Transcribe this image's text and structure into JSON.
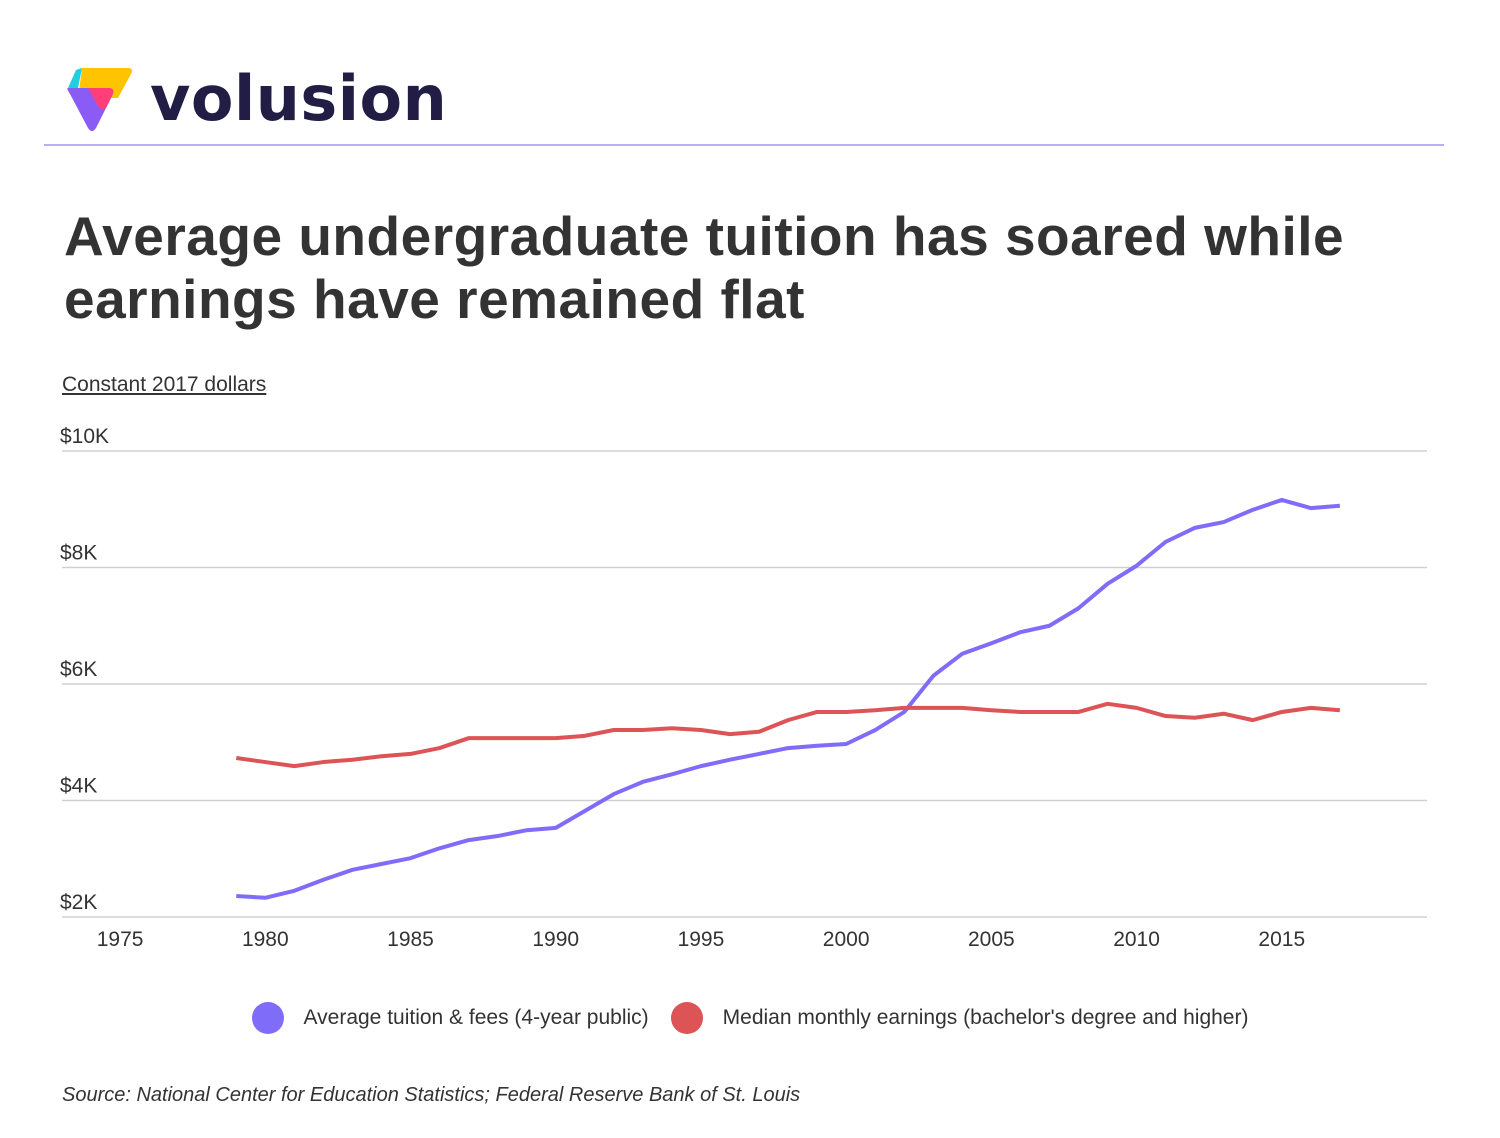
{
  "brand": {
    "name": "volusion"
  },
  "header": {
    "title": "Average undergraduate tuition has soared while earnings have remained flat"
  },
  "unit_label": "Constant 2017 dollars",
  "source": "Source: National Center for Education Statistics; Federal Reserve Bank of St. Louis",
  "colors": {
    "tuition": "#7f6cf8",
    "earnings": "#dc5456",
    "grid": "#d0d0d0",
    "brand_text": "#221d44"
  },
  "chart_data": {
    "type": "line",
    "title": "Average undergraduate tuition has soared while earnings have remained flat",
    "ylabel": "Constant 2017 dollars",
    "xlabel": "",
    "xlim": [
      1973,
      2020
    ],
    "ylim": [
      2000,
      10000
    ],
    "x_ticks": [
      1975,
      1980,
      1985,
      1990,
      1995,
      2000,
      2005,
      2010,
      2015
    ],
    "y_ticks": [
      2000,
      4000,
      6000,
      8000,
      10000
    ],
    "y_tick_labels": [
      "$2K",
      "$4K",
      "$6K",
      "$8K",
      "$10K"
    ],
    "grid": true,
    "legend_position": "bottom",
    "x": [
      1979,
      1980,
      1981,
      1982,
      1983,
      1984,
      1985,
      1986,
      1987,
      1988,
      1989,
      1990,
      1991,
      1992,
      1993,
      1994,
      1995,
      1996,
      1997,
      1998,
      1999,
      2000,
      2001,
      2002,
      2003,
      2004,
      2005,
      2006,
      2007,
      2008,
      2009,
      2010,
      2011,
      2012,
      2013,
      2014,
      2015,
      2016,
      2017
    ],
    "series": [
      {
        "name": "Average tuition & fees (4-year public)",
        "color": "#7f6cf8",
        "values": [
          2360,
          2330,
          2450,
          2640,
          2810,
          2910,
          3010,
          3180,
          3320,
          3390,
          3490,
          3530,
          3820,
          4110,
          4320,
          4450,
          4590,
          4700,
          4800,
          4900,
          4940,
          4970,
          5210,
          5520,
          6140,
          6520,
          6700,
          6890,
          7000,
          7300,
          7720,
          8030,
          8440,
          8680,
          8780,
          8990,
          9160,
          9020,
          9060
        ]
      },
      {
        "name": "Median monthly earnings (bachelor's degree and higher)",
        "color": "#dc5456",
        "values": [
          4730,
          4660,
          4590,
          4660,
          4700,
          4760,
          4800,
          4900,
          5070,
          5070,
          5070,
          5070,
          5110,
          5210,
          5210,
          5240,
          5210,
          5140,
          5180,
          5380,
          5520,
          5520,
          5550,
          5590,
          5590,
          5590,
          5550,
          5520,
          5520,
          5520,
          5660,
          5590,
          5450,
          5420,
          5490,
          5380,
          5520,
          5590,
          5550
        ]
      }
    ]
  }
}
